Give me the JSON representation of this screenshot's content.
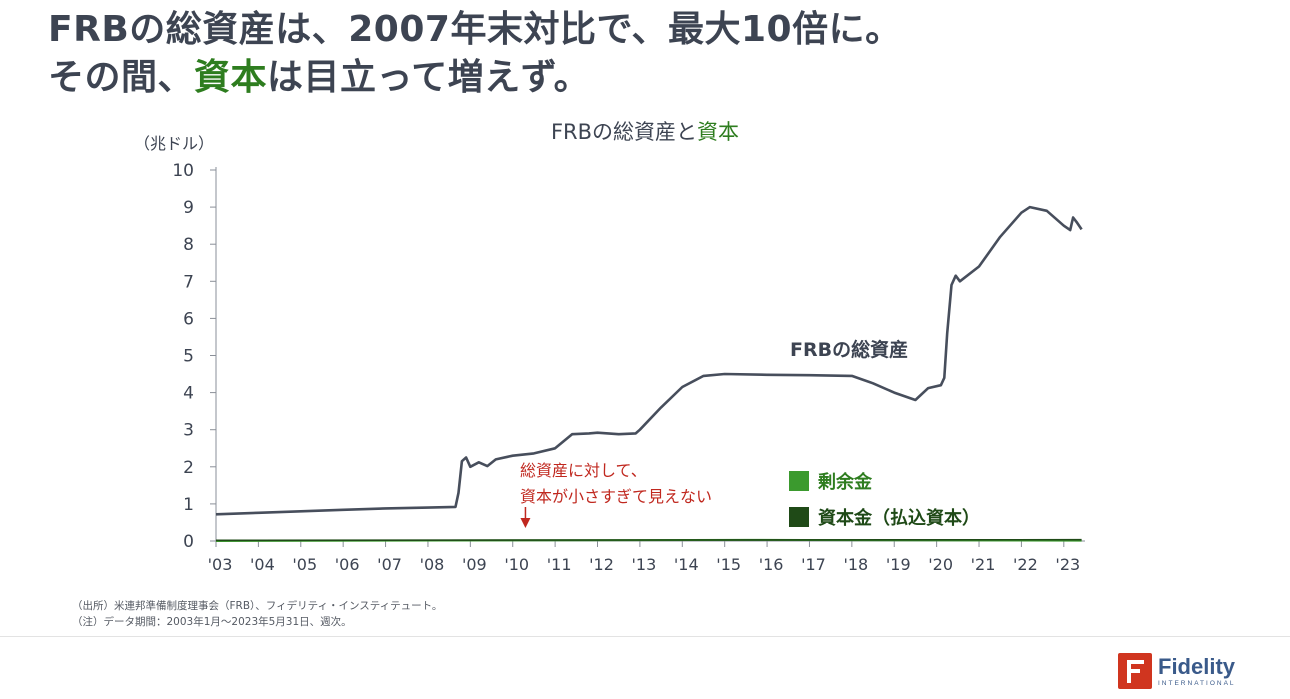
{
  "headline": {
    "line1": "FRBの総資産は、2007年末対比で、最大10倍に。",
    "line2_pre": "その間、",
    "line2_highlight": "資本",
    "line2_post": "は目立って増えず。"
  },
  "colors": {
    "text": "#3d4452",
    "highlight": "#2e7d1f",
    "assets_line": "#474e5c",
    "surplus": "#3b9a2e",
    "paid_in_capital": "#1f4a17",
    "annotation": "#c0281f",
    "brand": "#d0351f"
  },
  "chart_data": {
    "type": "line",
    "title_part1": "FRBの総資産と",
    "title_part2": "資本",
    "ylabel": "（兆ドル）",
    "ylim": [
      0,
      10
    ],
    "yticks": [
      "0",
      "1",
      "2",
      "3",
      "4",
      "5",
      "6",
      "7",
      "8",
      "9",
      "10"
    ],
    "xlim": [
      2003.0,
      2023.5
    ],
    "xticks": [
      {
        "year": 2003,
        "label": "'03"
      },
      {
        "year": 2004,
        "label": "'04"
      },
      {
        "year": 2005,
        "label": "'05"
      },
      {
        "year": 2006,
        "label": "'06"
      },
      {
        "year": 2007,
        "label": "'07"
      },
      {
        "year": 2008,
        "label": "'08"
      },
      {
        "year": 2009,
        "label": "'09"
      },
      {
        "year": 2010,
        "label": "'10"
      },
      {
        "year": 2011,
        "label": "'11"
      },
      {
        "year": 2012,
        "label": "'12"
      },
      {
        "year": 2013,
        "label": "'13"
      },
      {
        "year": 2014,
        "label": "'14"
      },
      {
        "year": 2015,
        "label": "'15"
      },
      {
        "year": 2016,
        "label": "'16"
      },
      {
        "year": 2017,
        "label": "'17"
      },
      {
        "year": 2018,
        "label": "'18"
      },
      {
        "year": 2019,
        "label": "'19"
      },
      {
        "year": 2020,
        "label": "'20"
      },
      {
        "year": 2021,
        "label": "'21"
      },
      {
        "year": 2022,
        "label": "'22"
      },
      {
        "year": 2023,
        "label": "'23"
      }
    ],
    "series": [
      {
        "name": "FRBの総資産",
        "points": [
          [
            2003.0,
            0.72
          ],
          [
            2004.0,
            0.76
          ],
          [
            2005.0,
            0.8
          ],
          [
            2006.0,
            0.84
          ],
          [
            2007.0,
            0.88
          ],
          [
            2008.0,
            0.9
          ],
          [
            2008.65,
            0.92
          ],
          [
            2008.72,
            1.3
          ],
          [
            2008.8,
            2.15
          ],
          [
            2008.9,
            2.25
          ],
          [
            2009.0,
            2.0
          ],
          [
            2009.2,
            2.12
          ],
          [
            2009.4,
            2.02
          ],
          [
            2009.6,
            2.2
          ],
          [
            2010.0,
            2.3
          ],
          [
            2010.5,
            2.36
          ],
          [
            2011.0,
            2.5
          ],
          [
            2011.4,
            2.88
          ],
          [
            2011.8,
            2.9
          ],
          [
            2012.0,
            2.92
          ],
          [
            2012.5,
            2.88
          ],
          [
            2012.9,
            2.9
          ],
          [
            2013.0,
            3.0
          ],
          [
            2013.5,
            3.6
          ],
          [
            2014.0,
            4.15
          ],
          [
            2014.5,
            4.45
          ],
          [
            2015.0,
            4.5
          ],
          [
            2016.0,
            4.48
          ],
          [
            2017.0,
            4.47
          ],
          [
            2018.0,
            4.45
          ],
          [
            2018.5,
            4.25
          ],
          [
            2019.0,
            4.0
          ],
          [
            2019.5,
            3.8
          ],
          [
            2019.8,
            4.12
          ],
          [
            2020.1,
            4.2
          ],
          [
            2020.18,
            4.4
          ],
          [
            2020.25,
            5.6
          ],
          [
            2020.35,
            6.9
          ],
          [
            2020.45,
            7.15
          ],
          [
            2020.55,
            7.0
          ],
          [
            2021.0,
            7.4
          ],
          [
            2021.5,
            8.2
          ],
          [
            2022.0,
            8.85
          ],
          [
            2022.2,
            9.0
          ],
          [
            2022.6,
            8.9
          ],
          [
            2023.0,
            8.5
          ],
          [
            2023.15,
            8.38
          ],
          [
            2023.22,
            8.72
          ],
          [
            2023.3,
            8.6
          ],
          [
            2023.42,
            8.4
          ]
        ]
      },
      {
        "name": "剰余金",
        "points": [
          [
            2003.0,
            0.0
          ],
          [
            2015.5,
            0.03
          ],
          [
            2023.42,
            0.01
          ]
        ]
      },
      {
        "name": "資本金（払込資本）",
        "points": [
          [
            2003.0,
            0.02
          ],
          [
            2023.42,
            0.035
          ]
        ]
      }
    ],
    "series_label": "FRBの総資産",
    "legend": [
      {
        "label": "剰余金",
        "color": "#3b9a2e"
      },
      {
        "label": "資本金（払込資本）",
        "color": "#1f4a17"
      }
    ],
    "annotation": {
      "line1": "総資産に対して、",
      "line2": "資本が小さすぎて見えない",
      "arrow_year": 2010.3
    },
    "grid": false
  },
  "footnotes": {
    "source": "（出所）米連邦準備制度理事会（FRB）、フィデリティ・インスティテュート。",
    "note": "（注）データ期間：2003年1月～2023年5月31日、週次。"
  },
  "brand": {
    "name": "Fidelity",
    "sub": "INTERNATIONAL",
    "icon": "fidelity-f-logo-icon"
  }
}
